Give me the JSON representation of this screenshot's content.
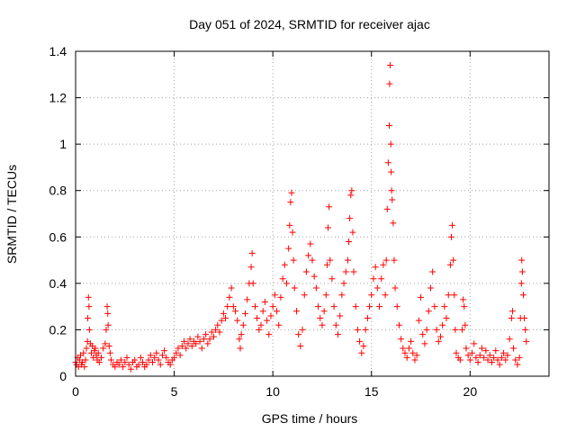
{
  "chart_data": {
    "type": "scatter",
    "title": "Day 051 of 2024, SRMTID for receiver ajac",
    "xlabel": "GPS time / hours",
    "ylabel": "SRMTID / TECUs",
    "xlim": [
      0,
      24
    ],
    "ylim": [
      0,
      1.4
    ],
    "xticks": [
      0,
      5,
      10,
      15,
      20
    ],
    "xtick_labels": [
      "0",
      "5",
      "10",
      "15",
      "20"
    ],
    "yticks": [
      0,
      0.2,
      0.4,
      0.6,
      0.8,
      1.0,
      1.2,
      1.4
    ],
    "ytick_labels": [
      "0",
      "0.2",
      "0.4",
      "0.6",
      "0.8",
      "1",
      "1.2",
      "1.4"
    ],
    "grid": true,
    "marker": "+",
    "marker_color": "#ff0000",
    "series": [
      {
        "name": "SRMTID",
        "points": [
          [
            0.0,
            0.06
          ],
          [
            0.05,
            0.05
          ],
          [
            0.1,
            0.08
          ],
          [
            0.15,
            0.04
          ],
          [
            0.2,
            0.07
          ],
          [
            0.25,
            0.09
          ],
          [
            0.3,
            0.05
          ],
          [
            0.35,
            0.06
          ],
          [
            0.4,
            0.1
          ],
          [
            0.45,
            0.04
          ],
          [
            0.5,
            0.07
          ],
          [
            0.55,
            0.12
          ],
          [
            0.6,
            0.15
          ],
          [
            0.62,
            0.25
          ],
          [
            0.65,
            0.34
          ],
          [
            0.68,
            0.3
          ],
          [
            0.7,
            0.2
          ],
          [
            0.75,
            0.14
          ],
          [
            0.8,
            0.1
          ],
          [
            0.85,
            0.13
          ],
          [
            0.9,
            0.08
          ],
          [
            0.95,
            0.11
          ],
          [
            1.0,
            0.12
          ],
          [
            1.05,
            0.09
          ],
          [
            1.1,
            0.07
          ],
          [
            1.15,
            0.1
          ],
          [
            1.2,
            0.06
          ],
          [
            1.3,
            0.08
          ],
          [
            1.4,
            0.12
          ],
          [
            1.5,
            0.14
          ],
          [
            1.55,
            0.2
          ],
          [
            1.6,
            0.3
          ],
          [
            1.63,
            0.27
          ],
          [
            1.65,
            0.22
          ],
          [
            1.7,
            0.13
          ],
          [
            1.75,
            0.1
          ],
          [
            1.8,
            0.07
          ],
          [
            1.9,
            0.05
          ],
          [
            2.0,
            0.04
          ],
          [
            2.1,
            0.06
          ],
          [
            2.2,
            0.05
          ],
          [
            2.3,
            0.07
          ],
          [
            2.4,
            0.04
          ],
          [
            2.5,
            0.06
          ],
          [
            2.6,
            0.08
          ],
          [
            2.7,
            0.05
          ],
          [
            2.8,
            0.03
          ],
          [
            2.9,
            0.06
          ],
          [
            3.0,
            0.07
          ],
          [
            3.1,
            0.04
          ],
          [
            3.2,
            0.05
          ],
          [
            3.3,
            0.08
          ],
          [
            3.4,
            0.06
          ],
          [
            3.5,
            0.04
          ],
          [
            3.6,
            0.05
          ],
          [
            3.7,
            0.07
          ],
          [
            3.8,
            0.09
          ],
          [
            3.9,
            0.06
          ],
          [
            4.0,
            0.08
          ],
          [
            4.1,
            0.1
          ],
          [
            4.2,
            0.07
          ],
          [
            4.3,
            0.05
          ],
          [
            4.4,
            0.09
          ],
          [
            4.5,
            0.11
          ],
          [
            4.6,
            0.08
          ],
          [
            4.7,
            0.06
          ],
          [
            4.8,
            0.05
          ],
          [
            4.9,
            0.07
          ],
          [
            5.0,
            0.08
          ],
          [
            5.1,
            0.1
          ],
          [
            5.2,
            0.12
          ],
          [
            5.3,
            0.09
          ],
          [
            5.4,
            0.13
          ],
          [
            5.5,
            0.15
          ],
          [
            5.6,
            0.12
          ],
          [
            5.7,
            0.14
          ],
          [
            5.8,
            0.16
          ],
          [
            5.9,
            0.13
          ],
          [
            6.0,
            0.15
          ],
          [
            6.1,
            0.14
          ],
          [
            6.2,
            0.17
          ],
          [
            6.3,
            0.15
          ],
          [
            6.4,
            0.12
          ],
          [
            6.5,
            0.16
          ],
          [
            6.6,
            0.18
          ],
          [
            6.7,
            0.14
          ],
          [
            6.8,
            0.16
          ],
          [
            6.9,
            0.19
          ],
          [
            7.0,
            0.17
          ],
          [
            7.1,
            0.2
          ],
          [
            7.2,
            0.22
          ],
          [
            7.3,
            0.19
          ],
          [
            7.4,
            0.24
          ],
          [
            7.5,
            0.27
          ],
          [
            7.6,
            0.25
          ],
          [
            7.7,
            0.3
          ],
          [
            7.8,
            0.34
          ],
          [
            7.9,
            0.38
          ],
          [
            8.0,
            0.3
          ],
          [
            8.1,
            0.28
          ],
          [
            8.2,
            0.24
          ],
          [
            8.3,
            0.16
          ],
          [
            8.35,
            0.12
          ],
          [
            8.4,
            0.18
          ],
          [
            8.5,
            0.22
          ],
          [
            8.6,
            0.27
          ],
          [
            8.7,
            0.33
          ],
          [
            8.8,
            0.4
          ],
          [
            8.9,
            0.47
          ],
          [
            8.95,
            0.53
          ],
          [
            9.0,
            0.4
          ],
          [
            9.1,
            0.3
          ],
          [
            9.2,
            0.25
          ],
          [
            9.3,
            0.2
          ],
          [
            9.4,
            0.22
          ],
          [
            9.5,
            0.28
          ],
          [
            9.6,
            0.32
          ],
          [
            9.7,
            0.24
          ],
          [
            9.8,
            0.18
          ],
          [
            9.9,
            0.26
          ],
          [
            10.0,
            0.3
          ],
          [
            10.1,
            0.35
          ],
          [
            10.2,
            0.28
          ],
          [
            10.3,
            0.22
          ],
          [
            10.4,
            0.34
          ],
          [
            10.5,
            0.42
          ],
          [
            10.6,
            0.48
          ],
          [
            10.7,
            0.4
          ],
          [
            10.8,
            0.55
          ],
          [
            10.85,
            0.65
          ],
          [
            10.9,
            0.75
          ],
          [
            10.95,
            0.79
          ],
          [
            11.0,
            0.62
          ],
          [
            11.05,
            0.5
          ],
          [
            11.1,
            0.38
          ],
          [
            11.2,
            0.28
          ],
          [
            11.3,
            0.18
          ],
          [
            11.4,
            0.13
          ],
          [
            11.5,
            0.2
          ],
          [
            11.6,
            0.35
          ],
          [
            11.7,
            0.45
          ],
          [
            11.8,
            0.52
          ],
          [
            11.9,
            0.57
          ],
          [
            12.0,
            0.5
          ],
          [
            12.1,
            0.43
          ],
          [
            12.2,
            0.38
          ],
          [
            12.3,
            0.3
          ],
          [
            12.4,
            0.25
          ],
          [
            12.5,
            0.22
          ],
          [
            12.6,
            0.28
          ],
          [
            12.7,
            0.35
          ],
          [
            12.75,
            0.48
          ],
          [
            12.8,
            0.64
          ],
          [
            12.85,
            0.73
          ],
          [
            12.9,
            0.5
          ],
          [
            13.0,
            0.42
          ],
          [
            13.1,
            0.3
          ],
          [
            13.2,
            0.22
          ],
          [
            13.3,
            0.18
          ],
          [
            13.4,
            0.26
          ],
          [
            13.5,
            0.35
          ],
          [
            13.6,
            0.4
          ],
          [
            13.7,
            0.45
          ],
          [
            13.8,
            0.5
          ],
          [
            13.85,
            0.58
          ],
          [
            13.9,
            0.68
          ],
          [
            13.95,
            0.78
          ],
          [
            14.0,
            0.8
          ],
          [
            14.05,
            0.62
          ],
          [
            14.1,
            0.45
          ],
          [
            14.2,
            0.3
          ],
          [
            14.3,
            0.2
          ],
          [
            14.4,
            0.15
          ],
          [
            14.5,
            0.1
          ],
          [
            14.6,
            0.13
          ],
          [
            14.7,
            0.2
          ],
          [
            14.8,
            0.25
          ],
          [
            14.9,
            0.3
          ],
          [
            15.0,
            0.35
          ],
          [
            15.1,
            0.42
          ],
          [
            15.2,
            0.47
          ],
          [
            15.3,
            0.38
          ],
          [
            15.4,
            0.3
          ],
          [
            15.5,
            0.42
          ],
          [
            15.6,
            0.48
          ],
          [
            15.7,
            0.35
          ],
          [
            15.75,
            0.5
          ],
          [
            15.8,
            0.72
          ],
          [
            15.85,
            0.92
          ],
          [
            15.9,
            1.08
          ],
          [
            15.92,
            1.26
          ],
          [
            15.95,
            1.34
          ],
          [
            15.98,
            1.0
          ],
          [
            16.0,
            0.88
          ],
          [
            16.02,
            0.8
          ],
          [
            16.05,
            0.76
          ],
          [
            16.1,
            0.66
          ],
          [
            16.15,
            0.5
          ],
          [
            16.2,
            0.38
          ],
          [
            16.3,
            0.3
          ],
          [
            16.4,
            0.22
          ],
          [
            16.5,
            0.16
          ],
          [
            16.6,
            0.12
          ],
          [
            16.7,
            0.1
          ],
          [
            16.8,
            0.08
          ],
          [
            16.9,
            0.12
          ],
          [
            17.0,
            0.15
          ],
          [
            17.1,
            0.1
          ],
          [
            17.2,
            0.07
          ],
          [
            17.3,
            0.09
          ],
          [
            17.4,
            0.24
          ],
          [
            17.5,
            0.34
          ],
          [
            17.6,
            0.18
          ],
          [
            17.7,
            0.14
          ],
          [
            17.8,
            0.2
          ],
          [
            17.9,
            0.28
          ],
          [
            18.0,
            0.38
          ],
          [
            18.1,
            0.45
          ],
          [
            18.2,
            0.3
          ],
          [
            18.3,
            0.2
          ],
          [
            18.4,
            0.15
          ],
          [
            18.5,
            0.17
          ],
          [
            18.6,
            0.22
          ],
          [
            18.7,
            0.3
          ],
          [
            18.8,
            0.25
          ],
          [
            18.9,
            0.35
          ],
          [
            19.0,
            0.48
          ],
          [
            19.05,
            0.6
          ],
          [
            19.1,
            0.65
          ],
          [
            19.15,
            0.5
          ],
          [
            19.2,
            0.35
          ],
          [
            19.25,
            0.2
          ],
          [
            19.3,
            0.1
          ],
          [
            19.4,
            0.08
          ],
          [
            19.5,
            0.07
          ],
          [
            19.6,
            0.2
          ],
          [
            19.65,
            0.33
          ],
          [
            19.7,
            0.3
          ],
          [
            19.75,
            0.22
          ],
          [
            19.8,
            0.12
          ],
          [
            19.9,
            0.09
          ],
          [
            20.0,
            0.07
          ],
          [
            20.1,
            0.1
          ],
          [
            20.2,
            0.14
          ],
          [
            20.3,
            0.08
          ],
          [
            20.4,
            0.06
          ],
          [
            20.5,
            0.09
          ],
          [
            20.6,
            0.12
          ],
          [
            20.7,
            0.08
          ],
          [
            20.8,
            0.11
          ],
          [
            20.9,
            0.07
          ],
          [
            21.0,
            0.09
          ],
          [
            21.1,
            0.06
          ],
          [
            21.2,
            0.08
          ],
          [
            21.3,
            0.11
          ],
          [
            21.4,
            0.07
          ],
          [
            21.5,
            0.05
          ],
          [
            21.6,
            0.08
          ],
          [
            21.7,
            0.1
          ],
          [
            21.8,
            0.07
          ],
          [
            21.9,
            0.09
          ],
          [
            22.0,
            0.16
          ],
          [
            22.1,
            0.25
          ],
          [
            22.15,
            0.28
          ],
          [
            22.2,
            0.12
          ],
          [
            22.3,
            0.07
          ],
          [
            22.4,
            0.05
          ],
          [
            22.5,
            0.08
          ],
          [
            22.55,
            0.25
          ],
          [
            22.6,
            0.4
          ],
          [
            22.62,
            0.5
          ],
          [
            22.65,
            0.45
          ],
          [
            22.7,
            0.35
          ],
          [
            22.75,
            0.25
          ],
          [
            22.8,
            0.2
          ],
          [
            22.85,
            0.15
          ]
        ]
      }
    ]
  }
}
